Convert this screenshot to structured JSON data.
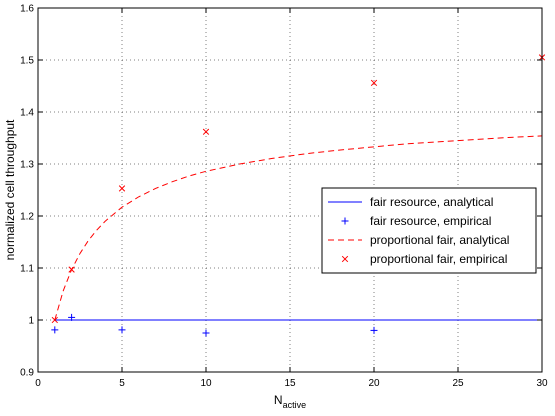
{
  "chart_data": {
    "type": "line",
    "title": "",
    "xlabel": "N",
    "xlabel_subscript": "active",
    "ylabel": "normalized cell throughput",
    "xlim": [
      0,
      30
    ],
    "ylim": [
      0.9,
      1.6
    ],
    "xticks": [
      0,
      5,
      10,
      15,
      20,
      25,
      30
    ],
    "yticks": [
      0.9,
      1.0,
      1.1,
      1.2,
      1.3,
      1.4,
      1.5,
      1.6
    ],
    "xtick_labels": [
      "0",
      "5",
      "10",
      "15",
      "20",
      "25",
      "30"
    ],
    "ytick_labels": [
      "0.9",
      "1",
      "1.1",
      "1.2",
      "1.3",
      "1.4",
      "1.5",
      "1.6"
    ],
    "grid": true,
    "grid_style": "dotted",
    "legend_position": "right-center",
    "series": [
      {
        "name": "fair resource, analytical",
        "style": "solid-line",
        "color": "#0000ff",
        "x": [
          1,
          30
        ],
        "y": [
          1.0,
          1.0
        ]
      },
      {
        "name": "fair resource, empirical",
        "style": "plus-marker",
        "color": "#0000ff",
        "x": [
          1,
          2,
          5,
          10,
          20
        ],
        "y": [
          0.981,
          1.005,
          0.981,
          0.975,
          0.98
        ]
      },
      {
        "name": "proportional fair, analytical",
        "style": "dashed-line",
        "color": "#ff0000",
        "x": [
          1,
          1.5,
          2,
          2.5,
          3,
          3.5,
          4,
          5,
          6,
          7,
          8,
          9,
          10,
          12,
          14,
          16,
          18,
          20,
          22,
          24,
          26,
          28,
          30
        ],
        "y": [
          1.0,
          1.056,
          1.097,
          1.128,
          1.153,
          1.173,
          1.19,
          1.217,
          1.237,
          1.253,
          1.266,
          1.277,
          1.286,
          1.3,
          1.311,
          1.32,
          1.327,
          1.333,
          1.339,
          1.343,
          1.347,
          1.351,
          1.354
        ]
      },
      {
        "name": "proportional fair, empirical",
        "style": "x-marker",
        "color": "#ff0000",
        "x": [
          1,
          2,
          5,
          10,
          20,
          30
        ],
        "y": [
          1.0,
          1.097,
          1.253,
          1.362,
          1.456,
          1.505
        ]
      }
    ]
  }
}
